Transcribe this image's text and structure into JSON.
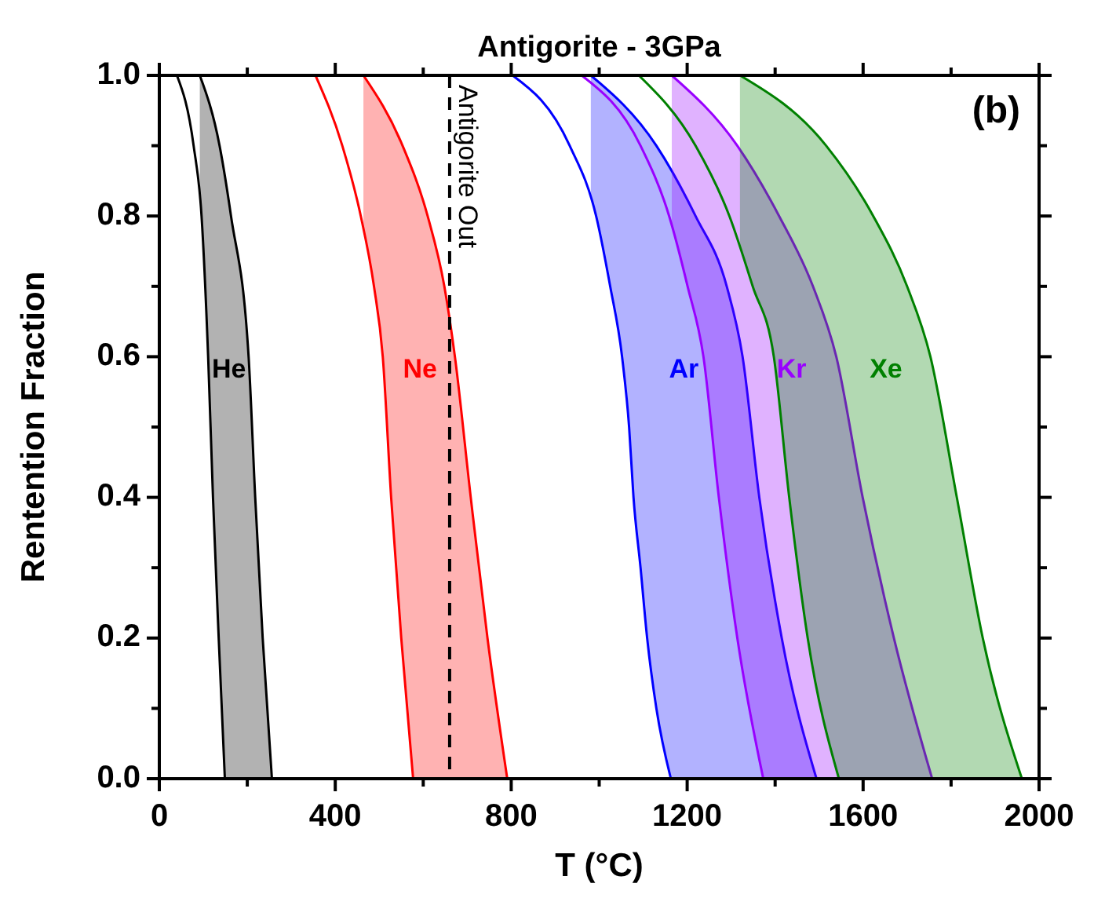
{
  "chart_data": {
    "type": "area",
    "title": "Antigorite - 3GPa",
    "xlabel": "T (°C)",
    "ylabel": "Rentention Fraction",
    "xlim": [
      0,
      2000
    ],
    "ylim": [
      0,
      1
    ],
    "xticks": [
      0,
      {
        "value": 200,
        "label": null
      },
      400,
      {
        "value": 600,
        "label": null
      },
      800,
      {
        "value": 1000,
        "label": null
      },
      1200,
      {
        "value": 1400,
        "label": null
      },
      1600,
      {
        "value": 1800,
        "label": null
      },
      2000
    ],
    "yticks": [
      {
        "value": 0,
        "label": "0.0"
      },
      {
        "value": 0.1,
        "label": null
      },
      {
        "value": 0.2,
        "label": "0.2"
      },
      {
        "value": 0.3,
        "label": null
      },
      {
        "value": 0.4,
        "label": "0.4"
      },
      {
        "value": 0.5,
        "label": null
      },
      {
        "value": 0.6,
        "label": "0.6"
      },
      {
        "value": 0.7,
        "label": null
      },
      {
        "value": 0.8,
        "label": "0.8"
      },
      {
        "value": 0.9,
        "label": null
      },
      {
        "value": 1,
        "label": "1.0"
      }
    ],
    "grid": false,
    "ref_lines": [
      {
        "axis": "x",
        "value": 660,
        "label": "Antigorite Out",
        "color": "#000000",
        "line_style": "dashed"
      }
    ],
    "annotations": [
      "(b)"
    ],
    "series": [
      {
        "type": "line",
        "color": "#000000",
        "x": [
          40,
          78,
          96,
          111,
          122,
          135,
          149
        ],
        "values": [
          1,
          0.9,
          0.8,
          0.6,
          0.4,
          0.2,
          0
        ]
      },
      {
        "name": "He",
        "color": "#000000",
        "x": [
          92,
          137,
          163,
          203,
          218,
          235,
          256
        ],
        "values": [
          1,
          0.9,
          0.8,
          0.6,
          0.4,
          0.2,
          0
        ]
      },
      {
        "type": "line",
        "color": "#ff0000",
        "x": [
          355,
          416,
          458,
          488,
          508,
          527,
          550,
          577
        ],
        "values": [
          1,
          0.9,
          0.8,
          0.7,
          0.6,
          0.4,
          0.2,
          0
        ]
      },
      {
        "name": "Ne",
        "color": "#ff0000",
        "x": [
          464,
          553,
          610,
          648,
          672,
          708,
          746,
          791
        ],
        "values": [
          1,
          0.9,
          0.8,
          0.7,
          0.6,
          0.4,
          0.2,
          0
        ]
      },
      {
        "type": "line",
        "color": "#0000ff",
        "x": [
          803,
          933,
          993,
          1025,
          1052,
          1068,
          1078,
          1094,
          1109,
          1130,
          1163
        ],
        "values": [
          1,
          0.9,
          0.8,
          0.7,
          0.6,
          0.5,
          0.4,
          0.3,
          0.2,
          0.1,
          0
        ]
      },
      {
        "name": "Ar",
        "color": "#0000ff",
        "x": [
          981,
          1130,
          1219,
          1290,
          1326,
          1364,
          1415,
          1494
        ],
        "values": [
          1,
          0.9,
          0.8,
          0.7,
          0.6,
          0.4,
          0.2,
          0
        ]
      },
      {
        "type": "line",
        "color": "#9900ff",
        "x": [
          960,
          1094,
          1159,
          1201,
          1237,
          1272,
          1314,
          1373
        ],
        "values": [
          1,
          0.9,
          0.8,
          0.7,
          0.6,
          0.4,
          0.2,
          0
        ]
      },
      {
        "name": "Kr",
        "color": "#9900ff",
        "x": [
          1165,
          1314,
          1409,
          1486,
          1539,
          1599,
          1670,
          1757
        ],
        "values": [
          1,
          0.9,
          0.8,
          0.7,
          0.6,
          0.4,
          0.2,
          0
        ]
      },
      {
        "type": "line",
        "color": "#008000",
        "x": [
          1090,
          1219,
          1296,
          1349,
          1397,
          1432,
          1474,
          1545
        ],
        "values": [
          1,
          0.9,
          0.8,
          0.7,
          0.6,
          0.4,
          0.2,
          0
        ]
      },
      {
        "name": "Xe",
        "color": "#008000",
        "x": [
          1320,
          1516,
          1623,
          1700,
          1753,
          1813,
          1872,
          1961
        ],
        "values": [
          1,
          0.9,
          0.8,
          0.7,
          0.6,
          0.4,
          0.2,
          0
        ]
      }
    ]
  }
}
